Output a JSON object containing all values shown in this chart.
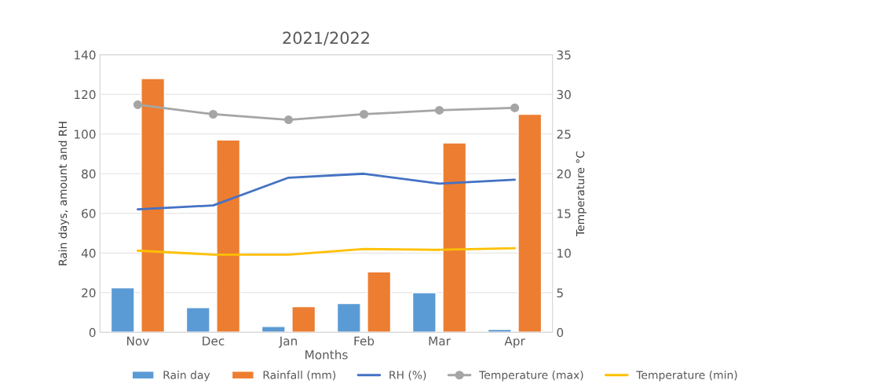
{
  "chart_data": {
    "type": "bar",
    "title": "2021/2022",
    "xlabel": "Months",
    "ylabel": "Rain days, amount and RH",
    "y2label": "Temperature °C",
    "categories": [
      "Nov",
      "Dec",
      "Jan",
      "Feb",
      "Mar",
      "Apr"
    ],
    "series": [
      {
        "name": "Rain day",
        "color": "#5b9bd5",
        "values": [
          22.5,
          12.5,
          3,
          14.5,
          20,
          1.5
        ]
      },
      {
        "name": "Rainfall (mm)",
        "color": "#ed7d31",
        "values": [
          128,
          97,
          13,
          30.5,
          95.5,
          110
        ]
      },
      {
        "name": "RH (%)",
        "type": "line",
        "color": "#4472c4",
        "marker": "none",
        "values": [
          62,
          64,
          78,
          80,
          75,
          77
        ]
      },
      {
        "name": "Temperature (max)",
        "type": "line",
        "axis": "y2",
        "color": "#a5a5a5",
        "marker": "circle",
        "values": [
          28.7,
          27.5,
          26.8,
          27.5,
          28,
          28.3
        ]
      },
      {
        "name": "Temperature (min)",
        "type": "line",
        "axis": "y2",
        "color": "#ffc000",
        "marker": "none",
        "values": [
          10.3,
          9.8,
          9.8,
          10.5,
          10.4,
          10.6
        ]
      }
    ],
    "ylim": [
      0,
      140
    ],
    "yticks": [
      0,
      20,
      40,
      60,
      80,
      100,
      120,
      140
    ],
    "y2lim": [
      0,
      35
    ],
    "y2ticks": [
      0,
      5,
      10,
      15,
      20,
      25,
      30,
      35
    ],
    "grid": "y",
    "legend": "bottom"
  }
}
